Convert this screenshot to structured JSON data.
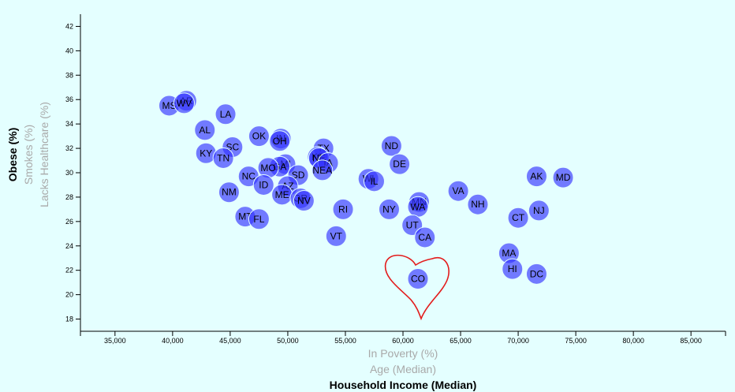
{
  "chart_data": {
    "type": "scatter",
    "x_axis": {
      "labels": [
        {
          "text": "In Poverty (%)",
          "active": false
        },
        {
          "text": "Age (Median)",
          "active": false
        },
        {
          "text": "Household Income (Median)",
          "active": true
        }
      ],
      "xlim": [
        32000,
        88000
      ],
      "ticks": [
        35000,
        40000,
        45000,
        50000,
        55000,
        60000,
        65000,
        70000,
        75000,
        80000,
        85000
      ],
      "tick_labels": [
        "35,000",
        "40,000",
        "45,000",
        "50,000",
        "55,000",
        "60,000",
        "65,000",
        "70,000",
        "75,000",
        "80,000",
        "85,000"
      ]
    },
    "y_axis": {
      "labels": [
        {
          "text": "Obese (%)",
          "active": true
        },
        {
          "text": "Smokes (%)",
          "active": false
        },
        {
          "text": "Lacks Healthcare (%)",
          "active": false
        }
      ],
      "ylim": [
        17,
        43
      ],
      "ticks": [
        18,
        20,
        22,
        24,
        26,
        28,
        30,
        32,
        34,
        36,
        38,
        40,
        42
      ],
      "tick_labels": [
        "18",
        "20",
        "22",
        "24",
        "26",
        "28",
        "30",
        "32",
        "34",
        "36",
        "38",
        "40",
        "42"
      ]
    },
    "grid": false,
    "annotation": "heart-doodle around CO",
    "points": [
      {
        "abbr": "MS",
        "x": 39700,
        "y": 35.5
      },
      {
        "abbr": "AR",
        "x": 41200,
        "y": 35.9
      },
      {
        "abbr": "WV",
        "x": 41000,
        "y": 35.7
      },
      {
        "abbr": "LA",
        "x": 44600,
        "y": 34.8
      },
      {
        "abbr": "AL",
        "x": 42800,
        "y": 33.5
      },
      {
        "abbr": "SC",
        "x": 45200,
        "y": 32.1
      },
      {
        "abbr": "KY",
        "x": 42900,
        "y": 31.6
      },
      {
        "abbr": "TN",
        "x": 44400,
        "y": 31.2
      },
      {
        "abbr": "OK",
        "x": 47500,
        "y": 33.0
      },
      {
        "abbr": "IN",
        "x": 49400,
        "y": 32.8
      },
      {
        "abbr": "OH",
        "x": 49300,
        "y": 32.6
      },
      {
        "abbr": "TX",
        "x": 53100,
        "y": 32.0
      },
      {
        "abbr": "KS",
        "x": 52600,
        "y": 31.3
      },
      {
        "abbr": "NE",
        "x": 52700,
        "y": 31.2
      },
      {
        "abbr": "IA",
        "x": 53500,
        "y": 30.8
      },
      {
        "abbr": "NEA",
        "x": 53000,
        "y": 30.2
      },
      {
        "abbr": "MI",
        "x": 49800,
        "y": 30.7
      },
      {
        "abbr": "GA",
        "x": 49300,
        "y": 30.5
      },
      {
        "abbr": "MO",
        "x": 48300,
        "y": 30.4
      },
      {
        "abbr": "SD",
        "x": 50900,
        "y": 29.8
      },
      {
        "abbr": "NC",
        "x": 46600,
        "y": 29.7
      },
      {
        "abbr": "ID",
        "x": 47900,
        "y": 29.0
      },
      {
        "abbr": "AZ",
        "x": 50000,
        "y": 28.9
      },
      {
        "abbr": "NM",
        "x": 44900,
        "y": 28.4
      },
      {
        "abbr": "ME",
        "x": 49500,
        "y": 28.2
      },
      {
        "abbr": "OR",
        "x": 51100,
        "y": 27.9
      },
      {
        "abbr": "NV",
        "x": 51400,
        "y": 27.7
      },
      {
        "abbr": "MT",
        "x": 46300,
        "y": 26.4
      },
      {
        "abbr": "FL",
        "x": 47500,
        "y": 26.2
      },
      {
        "abbr": "VT",
        "x": 54200,
        "y": 24.8
      },
      {
        "abbr": "RI",
        "x": 54800,
        "y": 27.0
      },
      {
        "abbr": "WI",
        "x": 57000,
        "y": 29.5
      },
      {
        "abbr": "IL",
        "x": 57500,
        "y": 29.3
      },
      {
        "abbr": "ND",
        "x": 59000,
        "y": 32.2
      },
      {
        "abbr": "DE",
        "x": 59700,
        "y": 30.7
      },
      {
        "abbr": "NY",
        "x": 58800,
        "y": 27.0
      },
      {
        "abbr": "MN",
        "x": 61400,
        "y": 27.6
      },
      {
        "abbr": "WA",
        "x": 61300,
        "y": 27.2
      },
      {
        "abbr": "UT",
        "x": 60800,
        "y": 25.7
      },
      {
        "abbr": "CA",
        "x": 61900,
        "y": 24.7
      },
      {
        "abbr": "VA",
        "x": 64800,
        "y": 28.5
      },
      {
        "abbr": "NH",
        "x": 66500,
        "y": 27.4
      },
      {
        "abbr": "CO",
        "x": 61300,
        "y": 21.3
      },
      {
        "abbr": "AK",
        "x": 71600,
        "y": 29.7
      },
      {
        "abbr": "MD",
        "x": 73900,
        "y": 29.6
      },
      {
        "abbr": "CT",
        "x": 70000,
        "y": 26.3
      },
      {
        "abbr": "NJ",
        "x": 71800,
        "y": 26.9
      },
      {
        "abbr": "MA",
        "x": 69200,
        "y": 23.4
      },
      {
        "abbr": "HI",
        "x": 69500,
        "y": 22.1
      },
      {
        "abbr": "DC",
        "x": 71600,
        "y": 21.7
      }
    ]
  }
}
